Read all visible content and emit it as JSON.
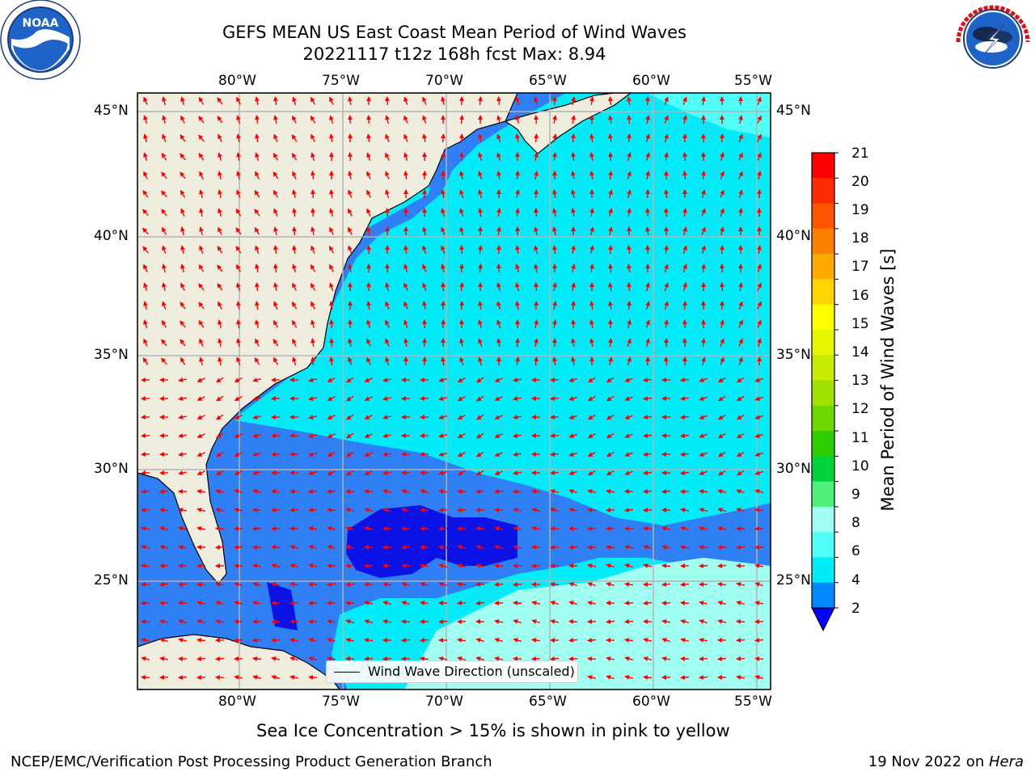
{
  "title": {
    "line1": "GEFS MEAN US East Coast Mean Period of Wind Waves",
    "line2": "20221117 t12z 168h fcst   Max: 8.94"
  },
  "logos": {
    "left": {
      "icon": "noaa-logo",
      "text": "NOAA",
      "ring_text": "NATIONAL OCEANIC AND ATMOSPHERIC ADMINISTRATION · U.S. DEPARTMENT OF COMMERCE"
    },
    "right": {
      "icon": "national-weather-service-logo",
      "ring_text": "NATIONAL WEATHER SERVICE"
    }
  },
  "map": {
    "lon_ticks": [
      "80°W",
      "75°W",
      "70°W",
      "65°W",
      "60°W",
      "55°W"
    ],
    "lat_ticks": [
      "45°N",
      "40°N",
      "35°N",
      "30°N",
      "25°N"
    ],
    "legend_label": "Wind Wave Direction (unscaled)",
    "arrow_color": "#ff0000",
    "land_color": "#efedde",
    "gridline_color": "#b4b4b4"
  },
  "colorbar": {
    "label": "Mean Period of Wind Waves [s]",
    "ticks": [
      "21",
      "20",
      "19",
      "18",
      "17",
      "16",
      "15",
      "14",
      "13",
      "12",
      "11",
      "10",
      "9",
      "8",
      "6",
      "4",
      "2"
    ],
    "colors": [
      "#ff0000",
      "#ff2a00",
      "#ff5500",
      "#ff8000",
      "#ffaa00",
      "#ffd400",
      "#ffff00",
      "#e6f500",
      "#c8eb00",
      "#a0e100",
      "#6fd700",
      "#2cce00",
      "#00d43a",
      "#4cf07a",
      "#a0fff0",
      "#50fff8",
      "#00ecf8",
      "#0088ff"
    ],
    "extend_color": "#0000ff"
  },
  "notes": {
    "sea_ice": "Sea Ice Concentration > 15% is shown in pink to yellow"
  },
  "footer": {
    "left": "NCEP/EMC/Verification Post Processing Product Generation Branch",
    "right_date": "19 Nov 2022 on ",
    "right_machine": "Hera"
  }
}
